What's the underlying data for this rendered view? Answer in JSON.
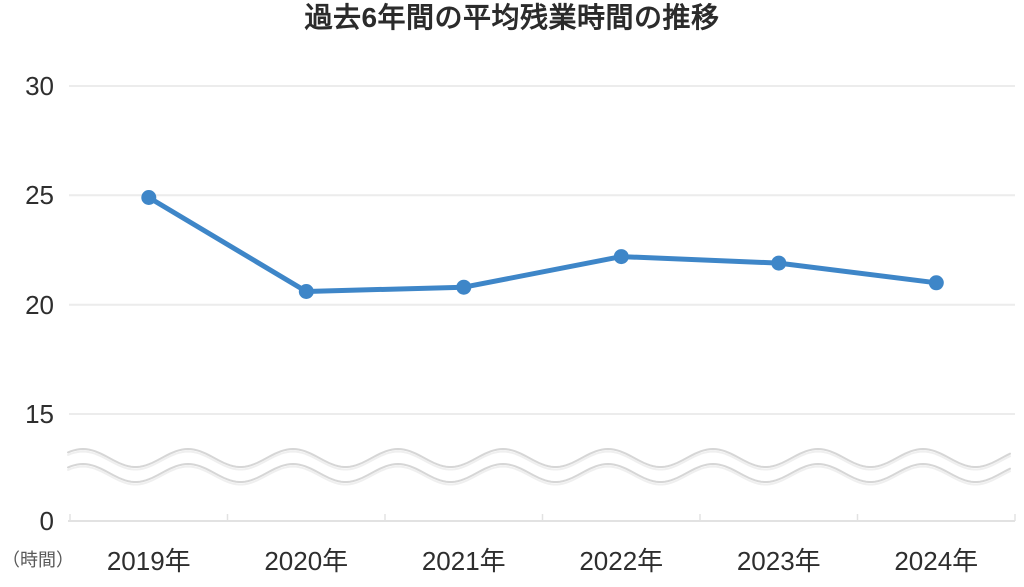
{
  "chart_data": {
    "type": "line",
    "title": "過去6年間の平均残業時間の推移",
    "unit_label": "（時間）",
    "categories": [
      "2019年",
      "2020年",
      "2021年",
      "2022年",
      "2023年",
      "2024年"
    ],
    "values": [
      24.9,
      20.6,
      20.8,
      22.2,
      21.9,
      21.0
    ],
    "y_ticks": [
      30,
      25,
      20,
      15,
      0
    ],
    "ylim": [
      0,
      30
    ],
    "axis_break_between": [
      0,
      15
    ],
    "grid": true,
    "legend": "none",
    "colors": {
      "line": "#3e86c8",
      "grid": "#ececec",
      "axis": "#e2e2e2",
      "wave": "#d6d6d6",
      "wave_shadow": "#efefef",
      "title": "#2b2b2b",
      "tick_label": "#2e2e2e",
      "unit_label": "#595959",
      "background": "#ffffff"
    }
  }
}
